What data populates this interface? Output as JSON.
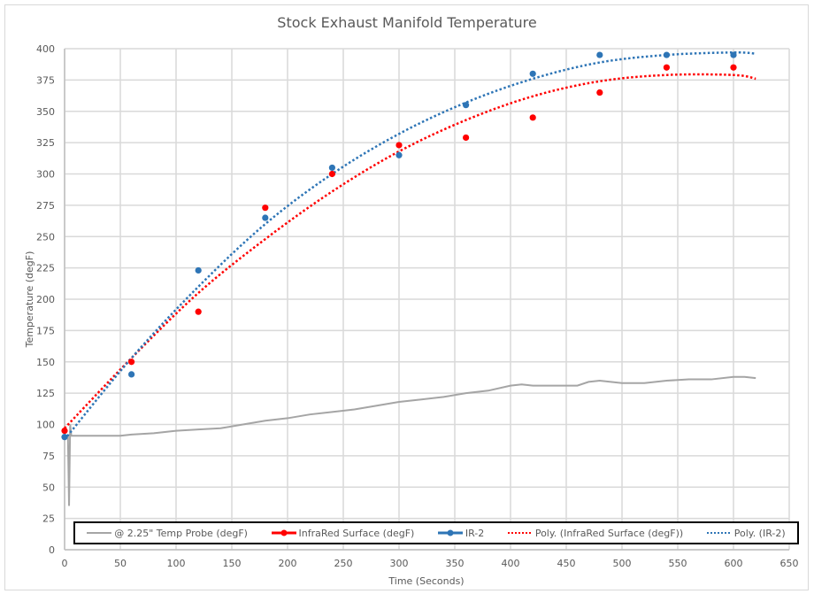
{
  "chart_data": {
    "type": "scatter",
    "title": "Stock Exhaust Manifold Temperature",
    "xlabel": "Time (Seconds)",
    "ylabel": "Temperature (degF)",
    "xlim": [
      0,
      650
    ],
    "ylim": [
      0,
      400
    ],
    "x_ticks": [
      0,
      50,
      100,
      150,
      200,
      250,
      300,
      350,
      400,
      450,
      500,
      550,
      600,
      650
    ],
    "y_ticks": [
      0,
      25,
      50,
      75,
      100,
      125,
      150,
      175,
      200,
      225,
      250,
      275,
      300,
      325,
      350,
      375,
      400
    ],
    "grid": true,
    "legend_position": "bottom-inside",
    "series": [
      {
        "name": "@ 2.25\" Temp Probe (degF)",
        "kind": "line",
        "color": "#a5a5a5",
        "x": [
          0,
          3,
          4,
          5,
          6,
          7,
          10,
          30,
          50,
          60,
          80,
          100,
          120,
          140,
          160,
          180,
          200,
          220,
          240,
          260,
          280,
          300,
          320,
          340,
          360,
          380,
          400,
          410,
          420,
          440,
          460,
          470,
          480,
          490,
          500,
          510,
          520,
          540,
          560,
          580,
          600,
          610,
          620
        ],
        "y": [
          91,
          91,
          35,
          100,
          91,
          91,
          91,
          91,
          91,
          92,
          93,
          95,
          96,
          97,
          100,
          103,
          105,
          108,
          110,
          112,
          115,
          118,
          120,
          122,
          125,
          127,
          131,
          132,
          131,
          131,
          131,
          134,
          135,
          134,
          133,
          133,
          133,
          135,
          136,
          136,
          138,
          138,
          137
        ]
      },
      {
        "name": "InfraRed Surface (degF)",
        "kind": "markers",
        "color": "#ff0000",
        "x": [
          0,
          60,
          120,
          180,
          240,
          300,
          360,
          420,
          480,
          540,
          600
        ],
        "y": [
          95,
          150,
          190,
          273,
          300,
          323,
          329,
          345,
          365,
          385,
          385
        ]
      },
      {
        "name": "IR-2",
        "kind": "markers",
        "color": "#2e75b6",
        "x": [
          0,
          60,
          120,
          180,
          240,
          300,
          360,
          420,
          480,
          540,
          600
        ],
        "y": [
          90,
          140,
          223,
          265,
          305,
          315,
          355,
          380,
          395,
          395,
          395
        ]
      },
      {
        "name": "Poly. (InfraRed Surface (degF))",
        "kind": "trendline-dotted",
        "color": "#ff0000",
        "x": [
          0,
          60,
          120,
          180,
          240,
          300,
          360,
          420,
          480,
          540,
          600,
          620
        ],
        "y": [
          97,
          153,
          205,
          248,
          286,
          318,
          343,
          362,
          374,
          379,
          379,
          376
        ]
      },
      {
        "name": "Poly. (IR-2)",
        "kind": "trendline-dotted",
        "color": "#2e75b6",
        "x": [
          0,
          60,
          120,
          180,
          240,
          300,
          360,
          420,
          480,
          540,
          600,
          620
        ],
        "y": [
          88,
          153,
          210,
          260,
          300,
          332,
          357,
          376,
          389,
          395,
          397,
          396
        ]
      }
    ]
  }
}
